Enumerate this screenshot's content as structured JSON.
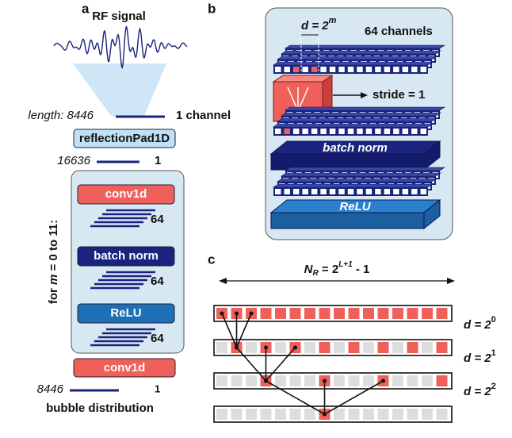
{
  "panel_a": {
    "label": "a",
    "signal_title": "RF signal",
    "input_length_label": "length:",
    "input_length": "8446",
    "input_channels": "1 channel",
    "pad_layer": "reflectionPad1D",
    "padded_length": "16636",
    "padded_channels": "1",
    "loop_label_prefix": "for ",
    "loop_var": "m",
    "loop_label_suffix": " = 0 to 11:",
    "loop_layers": [
      {
        "name": "conv1d",
        "channels": "64"
      },
      {
        "name": "batch norm",
        "channels": "64"
      },
      {
        "name": "ReLU",
        "channels": "64"
      }
    ],
    "final_layer": "conv1d",
    "output_length": "8446",
    "output_channels": "1",
    "output_label": "bubble distribution"
  },
  "panel_b": {
    "label": "b",
    "dilation_base": "d = 2",
    "dilation_exp": "m",
    "channels": "64 channels",
    "stride": "stride = 1",
    "norm_layer": "batch norm",
    "activation": "ReLU"
  },
  "panel_c": {
    "label": "c",
    "receptive_field": {
      "symbol": "N",
      "subscript": "R",
      "base": " = 2",
      "exp": "L+1",
      "tail": " - 1"
    },
    "dilations": [
      {
        "base": "d = 2",
        "exp": "0"
      },
      {
        "base": "d = 2",
        "exp": "1"
      },
      {
        "base": "d = 2",
        "exp": "2"
      }
    ]
  }
}
